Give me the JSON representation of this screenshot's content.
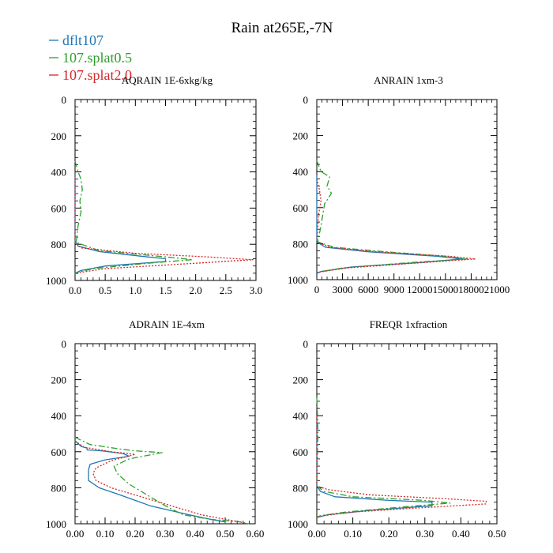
{
  "figure": {
    "title": "Rain at265E,-7N"
  },
  "legend": [
    {
      "label": "dflt107",
      "color": "#1f77b4",
      "dash": "solid"
    },
    {
      "label": "107.splat0.5",
      "color": "#2ca02c",
      "dash": "dashdot"
    },
    {
      "label": "107.splat2.0",
      "color": "#d62728",
      "dash": "dotted"
    }
  ],
  "chart_data": [
    {
      "type": "line",
      "title": "AQRAIN  1E-6xkg/kg",
      "xlim": [
        0,
        3.0
      ],
      "ylim": [
        1000,
        0
      ],
      "xticks": [
        0,
        0.5,
        1.0,
        1.5,
        2.0,
        2.5,
        3.0
      ],
      "xticklabels": [
        "0.0",
        "0.5",
        "1.0",
        "1.5",
        "2.0",
        "2.5",
        "3.0"
      ],
      "yticks": [
        0,
        200,
        400,
        600,
        800,
        1000
      ],
      "yticklabels": [
        "0",
        "200",
        "400",
        "600",
        "800",
        "1000"
      ],
      "series": [
        {
          "name": "dflt107",
          "points": [
            [
              0,
              400
            ],
            [
              0,
              600
            ],
            [
              0,
              780
            ],
            [
              0.05,
              810
            ],
            [
              0.4,
              840
            ],
            [
              1.2,
              870
            ],
            [
              1.5,
              880
            ],
            [
              1.5,
              895
            ],
            [
              0.5,
              920
            ],
            [
              0.1,
              945
            ],
            [
              0,
              960
            ]
          ]
        },
        {
          "name": "107.splat0.5",
          "points": [
            [
              0,
              340
            ],
            [
              0.05,
              400
            ],
            [
              0.1,
              440
            ],
            [
              0.12,
              500
            ],
            [
              0.08,
              560
            ],
            [
              0.1,
              620
            ],
            [
              0.05,
              700
            ],
            [
              0.02,
              790
            ],
            [
              0.4,
              835
            ],
            [
              1.5,
              870
            ],
            [
              1.95,
              885
            ],
            [
              1.2,
              905
            ],
            [
              0.3,
              935
            ],
            [
              0.05,
              955
            ],
            [
              0,
              965
            ]
          ]
        },
        {
          "name": "107.splat2.0",
          "points": [
            [
              0,
              400
            ],
            [
              0,
              600
            ],
            [
              0,
              790
            ],
            [
              0.1,
              820
            ],
            [
              1.0,
              850
            ],
            [
              2.2,
              870
            ],
            [
              2.95,
              885
            ],
            [
              2.0,
              905
            ],
            [
              0.5,
              935
            ],
            [
              0.1,
              955
            ],
            [
              0,
              965
            ]
          ]
        }
      ]
    },
    {
      "type": "line",
      "title": "ANRAIN  1xm-3",
      "xlim": [
        0,
        21000
      ],
      "ylim": [
        1000,
        0
      ],
      "xticks": [
        0,
        3000,
        6000,
        9000,
        12000,
        15000,
        18000,
        21000
      ],
      "xticklabels": [
        "0",
        "3000",
        "6000",
        "9000",
        "12000",
        "15000",
        "18000",
        "21000"
      ],
      "yticks": [
        0,
        200,
        400,
        600,
        800,
        1000
      ],
      "yticklabels": [
        "0",
        "200",
        "400",
        "600",
        "800",
        "1000"
      ],
      "series": [
        {
          "name": "dflt107",
          "points": [
            [
              0,
              420
            ],
            [
              0,
              600
            ],
            [
              0,
              790
            ],
            [
              1000,
              820
            ],
            [
              6000,
              845
            ],
            [
              14000,
              870
            ],
            [
              17000,
              885
            ],
            [
              12000,
              905
            ],
            [
              4000,
              930
            ],
            [
              500,
              955
            ],
            [
              0,
              965
            ]
          ]
        },
        {
          "name": "107.splat0.5",
          "points": [
            [
              0,
              340
            ],
            [
              500,
              400
            ],
            [
              1500,
              430
            ],
            [
              1200,
              480
            ],
            [
              1700,
              520
            ],
            [
              900,
              580
            ],
            [
              700,
              640
            ],
            [
              500,
              700
            ],
            [
              100,
              790
            ],
            [
              2000,
              820
            ],
            [
              8000,
              845
            ],
            [
              15000,
              870
            ],
            [
              17500,
              885
            ],
            [
              11000,
              905
            ],
            [
              3000,
              935
            ],
            [
              200,
              958
            ],
            [
              0,
              965
            ]
          ]
        },
        {
          "name": "107.splat2.0",
          "points": [
            [
              0,
              440
            ],
            [
              300,
              500
            ],
            [
              500,
              560
            ],
            [
              200,
              640
            ],
            [
              0,
              790
            ],
            [
              1500,
              820
            ],
            [
              7000,
              845
            ],
            [
              15500,
              870
            ],
            [
              18500,
              885
            ],
            [
              12500,
              905
            ],
            [
              3500,
              935
            ],
            [
              300,
              958
            ],
            [
              0,
              965
            ]
          ]
        }
      ]
    },
    {
      "type": "line",
      "title": "ADRAIN  1E-4xm",
      "xlim": [
        0,
        0.6
      ],
      "ylim": [
        1000,
        0
      ],
      "xticks": [
        0,
        0.1,
        0.2,
        0.3,
        0.4,
        0.5,
        0.6
      ],
      "xticklabels": [
        "0.00",
        "0.10",
        "0.20",
        "0.30",
        "0.40",
        "0.50",
        "0.60"
      ],
      "yticks": [
        0,
        200,
        400,
        600,
        800,
        1000
      ],
      "yticklabels": [
        "0",
        "200",
        "400",
        "600",
        "800",
        "1000"
      ],
      "series": [
        {
          "name": "dflt107",
          "points": [
            [
              0,
              540
            ],
            [
              0.02,
              570
            ],
            [
              0.04,
              580
            ],
            [
              0.04,
              590
            ],
            [
              0.09,
              595
            ],
            [
              0.16,
              610
            ],
            [
              0.18,
              625
            ],
            [
              0.1,
              645
            ],
            [
              0.05,
              670
            ],
            [
              0.045,
              700
            ],
            [
              0.045,
              760
            ],
            [
              0.08,
              800
            ],
            [
              0.15,
              840
            ],
            [
              0.25,
              900
            ],
            [
              0.38,
              950
            ],
            [
              0.45,
              975
            ],
            [
              0.5,
              990
            ],
            [
              0.5,
              1000
            ]
          ]
        },
        {
          "name": "107.splat0.5",
          "points": [
            [
              0,
              520
            ],
            [
              0.05,
              560
            ],
            [
              0.15,
              585
            ],
            [
              0.2,
              595
            ],
            [
              0.29,
              605
            ],
            [
              0.18,
              640
            ],
            [
              0.13,
              680
            ],
            [
              0.14,
              720
            ],
            [
              0.18,
              780
            ],
            [
              0.25,
              850
            ],
            [
              0.3,
              900
            ],
            [
              0.36,
              950
            ],
            [
              0.45,
              975
            ],
            [
              0.55,
              990
            ],
            [
              0.58,
              1000
            ]
          ]
        },
        {
          "name": "107.splat2.0",
          "points": [
            [
              0,
              540
            ],
            [
              0.03,
              575
            ],
            [
              0.12,
              600
            ],
            [
              0.2,
              615
            ],
            [
              0.12,
              650
            ],
            [
              0.07,
              690
            ],
            [
              0.06,
              720
            ],
            [
              0.07,
              760
            ],
            [
              0.12,
              800
            ],
            [
              0.22,
              850
            ],
            [
              0.32,
              900
            ],
            [
              0.42,
              950
            ],
            [
              0.5,
              975
            ],
            [
              0.55,
              990
            ],
            [
              0.57,
              1000
            ]
          ]
        }
      ]
    },
    {
      "type": "line",
      "title": "FREQR  1xfraction",
      "xlim": [
        0,
        0.5
      ],
      "ylim": [
        1000,
        0
      ],
      "xticks": [
        0,
        0.1,
        0.2,
        0.3,
        0.4,
        0.5
      ],
      "xticklabels": [
        "0.00",
        "0.10",
        "0.20",
        "0.30",
        "0.40",
        "0.50"
      ],
      "yticks": [
        0,
        200,
        400,
        600,
        800,
        1000
      ],
      "yticklabels": [
        "0",
        "200",
        "400",
        "600",
        "800",
        "1000"
      ],
      "series": [
        {
          "name": "dflt107",
          "points": [
            [
              0,
              420
            ],
            [
              0,
              600
            ],
            [
              0,
              790
            ],
            [
              0.01,
              820
            ],
            [
              0.05,
              850
            ],
            [
              0.2,
              870
            ],
            [
              0.32,
              880
            ],
            [
              0.32,
              900
            ],
            [
              0.15,
              925
            ],
            [
              0.03,
              950
            ],
            [
              0,
              965
            ]
          ]
        },
        {
          "name": "107.splat0.5",
          "points": [
            [
              0,
              300
            ],
            [
              0.002,
              400
            ],
            [
              0.003,
              500
            ],
            [
              0.002,
              600
            ],
            [
              0,
              790
            ],
            [
              0.02,
              820
            ],
            [
              0.1,
              850
            ],
            [
              0.3,
              870
            ],
            [
              0.37,
              885
            ],
            [
              0.25,
              905
            ],
            [
              0.08,
              935
            ],
            [
              0.01,
              955
            ],
            [
              0,
              965
            ]
          ]
        },
        {
          "name": "107.splat2.0",
          "points": [
            [
              0,
              400
            ],
            [
              0,
              600
            ],
            [
              0,
              790
            ],
            [
              0.03,
              810
            ],
            [
              0.15,
              840
            ],
            [
              0.35,
              860
            ],
            [
              0.47,
              875
            ],
            [
              0.47,
              890
            ],
            [
              0.3,
              910
            ],
            [
              0.1,
              935
            ],
            [
              0.02,
              955
            ],
            [
              0,
              965
            ]
          ]
        }
      ]
    }
  ]
}
